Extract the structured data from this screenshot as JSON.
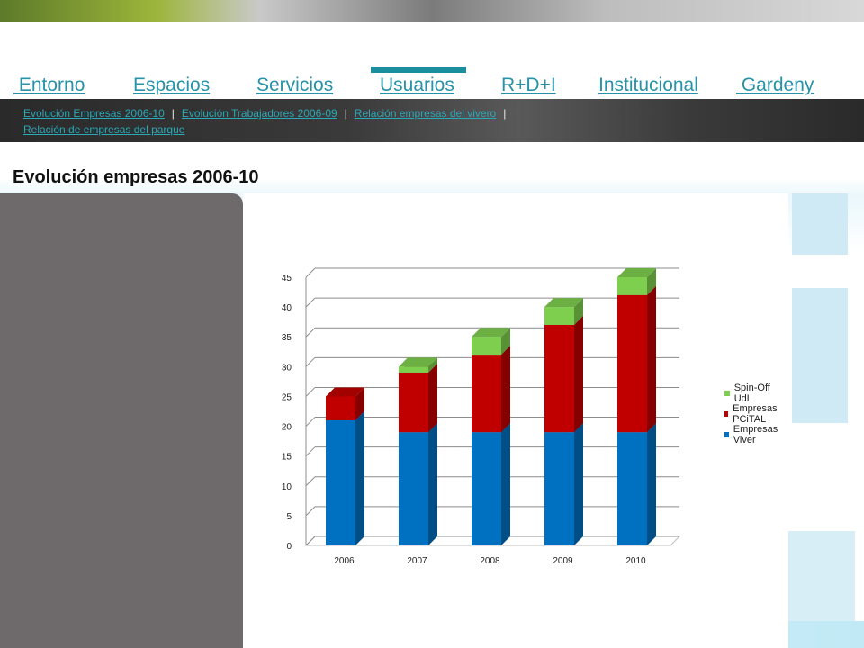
{
  "nav": {
    "items": [
      {
        "label": " Entorno"
      },
      {
        "label": "Espacios"
      },
      {
        "label": "Servicios"
      },
      {
        "label": "Usuarios",
        "active": true
      },
      {
        "label": "R+D+I"
      },
      {
        "label": "Institucional"
      },
      {
        "label": " Gardeny"
      }
    ]
  },
  "subnav": {
    "links": [
      "Evolución Empresas 2006-10",
      "Evolución Trabajadores 2006-09",
      "Relación empresas del vivero",
      "Relación de empresas del parque"
    ],
    "separator": "|"
  },
  "page": {
    "title": "Evolución empresas  2006-10"
  },
  "colors": {
    "accent": "#1b8f9e",
    "link": "#2792a8",
    "viver": "#0070c0",
    "pcital": "#c00000",
    "spinoff": "#7fcf4f"
  },
  "chart_data": {
    "type": "bar",
    "stacked": true,
    "categories": [
      "2006",
      "2007",
      "2008",
      "2009",
      "2010"
    ],
    "series": [
      {
        "name": "Empresas Viver",
        "values": [
          21,
          19,
          19,
          19,
          19
        ]
      },
      {
        "name": "Empresas PCiTAL",
        "values": [
          4,
          10,
          13,
          18,
          23
        ]
      },
      {
        "name": "Spin-Off UdL",
        "values": [
          0,
          1,
          3,
          3,
          3
        ]
      }
    ],
    "legend_order": [
      "Spin-Off UdL",
      "Empresas PCiTAL",
      "Empresas Viver"
    ],
    "yticks": [
      "0",
      "5",
      "10",
      "15",
      "20",
      "25",
      "30",
      "35",
      "40",
      "45"
    ],
    "ylim": [
      0,
      45
    ],
    "grid": true,
    "legend_position": "right"
  }
}
